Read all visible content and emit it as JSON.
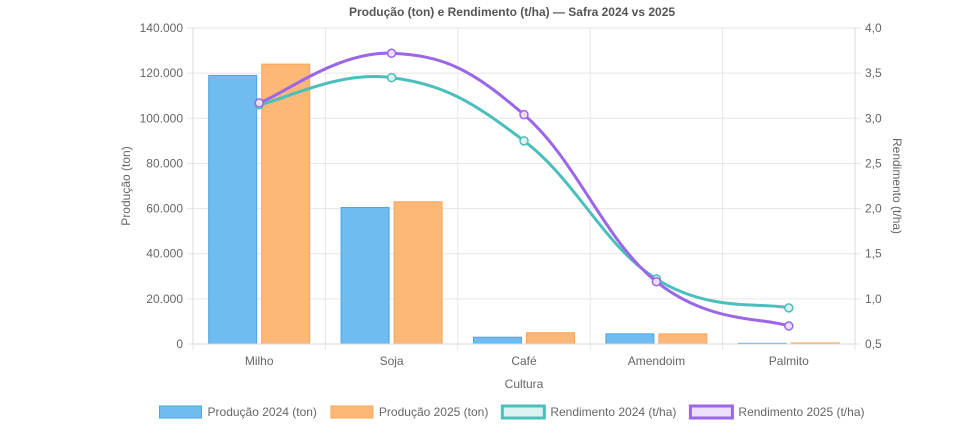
{
  "chart_data": {
    "type": "bar",
    "title": "Produção (ton) e Rendimento (t/ha) — Safra 2024 vs 2025",
    "xlabel": "Cultura",
    "ylabel": "Produção (ton)",
    "y2label": "Rendimento (t/ha)",
    "categories": [
      "Milho",
      "Soja",
      "Café",
      "Amendoim",
      "Palmito"
    ],
    "ylim": [
      0,
      140000
    ],
    "y2lim": [
      0.5,
      4.0
    ],
    "yticks": [
      {
        "value": 0,
        "label": "0"
      },
      {
        "value": 20000,
        "label": "20.000"
      },
      {
        "value": 40000,
        "label": "40.000"
      },
      {
        "value": 60000,
        "label": "60.000"
      },
      {
        "value": 80000,
        "label": "80.000"
      },
      {
        "value": 100000,
        "label": "100.000"
      },
      {
        "value": 120000,
        "label": "120.000"
      },
      {
        "value": 140000,
        "label": "140.000"
      }
    ],
    "y2ticks": [
      {
        "value": 0.5,
        "label": "0,5"
      },
      {
        "value": 1.0,
        "label": "1,0"
      },
      {
        "value": 1.5,
        "label": "1,5"
      },
      {
        "value": 2.0,
        "label": "2,0"
      },
      {
        "value": 2.5,
        "label": "2,5"
      },
      {
        "value": 3.0,
        "label": "3,0"
      },
      {
        "value": 3.5,
        "label": "3,5"
      },
      {
        "value": 4.0,
        "label": "4,0"
      }
    ],
    "bar_series": [
      {
        "name": "Produção 2024 (ton)",
        "values": [
          119000,
          60500,
          3000,
          4500,
          300
        ],
        "fill": "#70bcf0",
        "stroke": "#46a6e6"
      },
      {
        "name": "Produção 2025 (ton)",
        "values": [
          124000,
          63000,
          5000,
          4500,
          500
        ],
        "fill": "#fdb878",
        "stroke": "#fca552"
      }
    ],
    "line_series": [
      {
        "name": "Rendimento 2024 (t/ha)",
        "values": [
          3.15,
          3.45,
          2.75,
          1.22,
          0.9
        ],
        "stroke": "#4bbfbb",
        "fill": "#dbf2f1"
      },
      {
        "name": "Rendimento 2025 (t/ha)",
        "values": [
          3.17,
          3.72,
          3.04,
          1.19,
          0.7
        ],
        "stroke": "#9b66e8",
        "fill": "#ebdffb"
      }
    ],
    "grid": true,
    "legend_position": "bottom"
  }
}
